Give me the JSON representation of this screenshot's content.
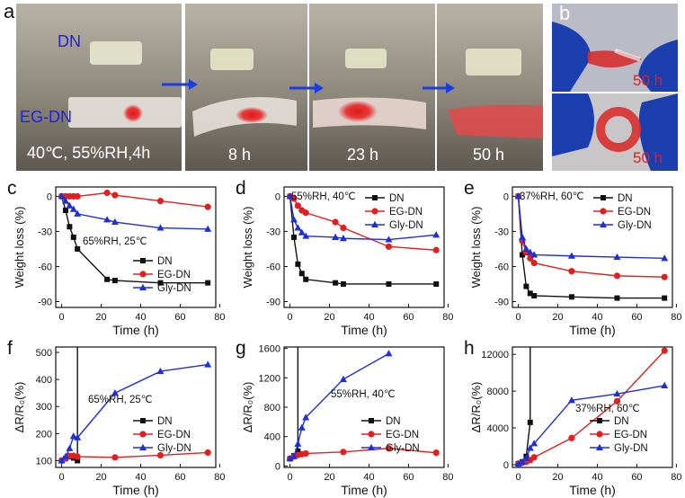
{
  "panel_a": {
    "letter": "a",
    "label_dn": "DN",
    "label_egdn": "EG-DN",
    "conditions": "40℃, 55%RH,4h",
    "time_8": "8 h",
    "time_23": "23 h",
    "time_50": "50 h",
    "colors": {
      "label": "#1f22e0",
      "arrow": "#1a3de0",
      "bg": "#7a7468",
      "time": "#ffffff"
    }
  },
  "panel_b": {
    "letter": "b",
    "time_top": "50 h",
    "time_bottom": "50 h",
    "colors": {
      "text": "#e02020",
      "glove": "#1c3fb0"
    }
  },
  "series_colors": {
    "DN": "#111111",
    "EG-DN": "#e02020",
    "Gly-DN": "#1f2fd6"
  },
  "chart_data": [
    {
      "id": "c",
      "letter": "c",
      "type": "line",
      "annotation": "65%RH, 25℃",
      "xlabel": "Time (h)",
      "ylabel": "Weight loss (%)",
      "xlim": [
        -3,
        78
      ],
      "ylim": [
        -95,
        8
      ],
      "xticks": [
        0,
        20,
        40,
        60,
        80
      ],
      "yticks": [
        0,
        -30,
        -60,
        -90
      ],
      "legend": "bottom-right",
      "series": [
        {
          "name": "DN",
          "marker": "square",
          "x": [
            0,
            2,
            4,
            6,
            8,
            23,
            27,
            50,
            74
          ],
          "y": [
            0,
            -12,
            -26,
            -35,
            -45,
            -71,
            -72,
            -74,
            -74
          ]
        },
        {
          "name": "EG-DN",
          "marker": "circle",
          "x": [
            0,
            2,
            4,
            6,
            8,
            23,
            27,
            50,
            74
          ],
          "y": [
            0,
            0,
            0,
            0,
            0,
            3,
            1,
            -4,
            -9
          ]
        },
        {
          "name": "Gly-DN",
          "marker": "triangle",
          "x": [
            0,
            2,
            4,
            6,
            8,
            23,
            27,
            50,
            74
          ],
          "y": [
            0,
            -4,
            -8,
            -11,
            -15,
            -20,
            -22,
            -27,
            -28
          ]
        }
      ]
    },
    {
      "id": "d",
      "letter": "d",
      "type": "line",
      "annotation": "55%RH, 40℃",
      "xlabel": "Time (h)",
      "ylabel": "Weight loss (%)",
      "xlim": [
        -3,
        78
      ],
      "ylim": [
        -95,
        8
      ],
      "xticks": [
        0,
        20,
        40,
        60,
        80
      ],
      "yticks": [
        0,
        -30,
        -60,
        -90
      ],
      "legend": "top-right",
      "series": [
        {
          "name": "DN",
          "marker": "square",
          "x": [
            0,
            2,
            4,
            6,
            8,
            23,
            27,
            50,
            74
          ],
          "y": [
            0,
            -35,
            -58,
            -66,
            -71,
            -74,
            -75,
            -75,
            -75
          ]
        },
        {
          "name": "EG-DN",
          "marker": "circle",
          "x": [
            0,
            2,
            4,
            6,
            8,
            23,
            27,
            50,
            74
          ],
          "y": [
            0,
            -2,
            -8,
            -12,
            -14,
            -22,
            -27,
            -43,
            -46
          ]
        },
        {
          "name": "Gly-DN",
          "marker": "triangle",
          "x": [
            0,
            2,
            4,
            6,
            8,
            23,
            27,
            50,
            74
          ],
          "y": [
            0,
            -20,
            -27,
            -31,
            -34,
            -35,
            -36,
            -37,
            -33
          ]
        }
      ]
    },
    {
      "id": "e",
      "letter": "e",
      "type": "line",
      "annotation": "37%RH, 60℃",
      "xlabel": "Time (h)",
      "ylabel": "Weight loss (%)",
      "xlim": [
        -3,
        78
      ],
      "ylim": [
        -95,
        8
      ],
      "xticks": [
        0,
        20,
        40,
        60,
        80
      ],
      "yticks": [
        0,
        -30,
        -60,
        -90
      ],
      "legend": "top-right",
      "series": [
        {
          "name": "DN",
          "marker": "square",
          "x": [
            0,
            2,
            4,
            6,
            8,
            27,
            50,
            74
          ],
          "y": [
            0,
            -50,
            -77,
            -83,
            -85,
            -86,
            -87,
            -87
          ]
        },
        {
          "name": "EG-DN",
          "marker": "circle",
          "x": [
            0,
            2,
            4,
            6,
            8,
            27,
            50,
            74
          ],
          "y": [
            0,
            -38,
            -48,
            -53,
            -57,
            -64,
            -68,
            -69
          ]
        },
        {
          "name": "Gly-DN",
          "marker": "triangle",
          "x": [
            0,
            2,
            4,
            6,
            8,
            27,
            50,
            74
          ],
          "y": [
            0,
            -35,
            -45,
            -48,
            -50,
            -51,
            -52,
            -53
          ]
        }
      ]
    },
    {
      "id": "f",
      "letter": "f",
      "type": "line",
      "annotation": "65%RH, 25℃",
      "xlabel": "Time (h)",
      "ylabel": "ΔR/R₀(%)",
      "xlim": [
        -3,
        78
      ],
      "ylim": [
        75,
        520
      ],
      "xticks": [
        0,
        20,
        40,
        60,
        80
      ],
      "yticks": [
        100,
        200,
        300,
        400,
        500
      ],
      "legend": "bottom-right",
      "series": [
        {
          "name": "DN",
          "marker": "square",
          "x": [
            0,
            2,
            4,
            6,
            8,
            8
          ],
          "y": [
            100,
            108,
            115,
            110,
            100,
            520
          ]
        },
        {
          "name": "EG-DN",
          "marker": "circle",
          "x": [
            0,
            2,
            4,
            6,
            8,
            27,
            50,
            74
          ],
          "y": [
            100,
            108,
            118,
            118,
            115,
            112,
            120,
            130
          ]
        },
        {
          "name": "Gly-DN",
          "marker": "triangle",
          "x": [
            0,
            2,
            4,
            6,
            8,
            27,
            50,
            74
          ],
          "y": [
            100,
            115,
            145,
            190,
            185,
            350,
            430,
            455
          ]
        }
      ]
    },
    {
      "id": "g",
      "letter": "g",
      "type": "line",
      "annotation": "55%RH, 40℃",
      "xlabel": "Time (h)",
      "ylabel": "ΔR/R₀(%)",
      "xlim": [
        -3,
        78
      ],
      "ylim": [
        -20,
        1620
      ],
      "xticks": [
        0,
        20,
        40,
        60,
        80
      ],
      "yticks": [
        0,
        400,
        800,
        1200,
        1600
      ],
      "legend": "bottom-right",
      "series": [
        {
          "name": "DN",
          "marker": "square",
          "x": [
            0,
            2,
            4,
            4
          ],
          "y": [
            100,
            140,
            200,
            1620
          ]
        },
        {
          "name": "EG-DN",
          "marker": "circle",
          "x": [
            0,
            2,
            4,
            6,
            8,
            27,
            50,
            74
          ],
          "y": [
            100,
            130,
            150,
            160,
            170,
            190,
            240,
            180
          ]
        },
        {
          "name": "Gly-DN",
          "marker": "triangle",
          "x": [
            0,
            2,
            4,
            6,
            8,
            27,
            50
          ],
          "y": [
            100,
            130,
            300,
            520,
            660,
            1180,
            1530
          ]
        }
      ]
    },
    {
      "id": "h",
      "letter": "h",
      "type": "line",
      "annotation": "37%RH, 60℃",
      "xlabel": "Time (h)",
      "ylabel": "ΔR/R₀(%)",
      "xlim": [
        -3,
        78
      ],
      "ylim": [
        -300,
        12800
      ],
      "xticks": [
        0,
        20,
        40,
        60,
        80
      ],
      "yticks": [
        0,
        4000,
        8000,
        12000
      ],
      "legend": "bottom-right",
      "series": [
        {
          "name": "DN",
          "marker": "square",
          "x": [
            0,
            2,
            4,
            6,
            6
          ],
          "y": [
            100,
            300,
            900,
            4600,
            12800
          ]
        },
        {
          "name": "EG-DN",
          "marker": "circle",
          "x": [
            0,
            2,
            4,
            6,
            8,
            27,
            50,
            74
          ],
          "y": [
            100,
            200,
            300,
            500,
            800,
            2900,
            6900,
            12400
          ]
        },
        {
          "name": "Gly-DN",
          "marker": "triangle",
          "x": [
            0,
            2,
            4,
            6,
            8,
            27,
            50,
            74
          ],
          "y": [
            100,
            300,
            700,
            1800,
            2300,
            7000,
            7700,
            8600
          ]
        }
      ]
    }
  ]
}
